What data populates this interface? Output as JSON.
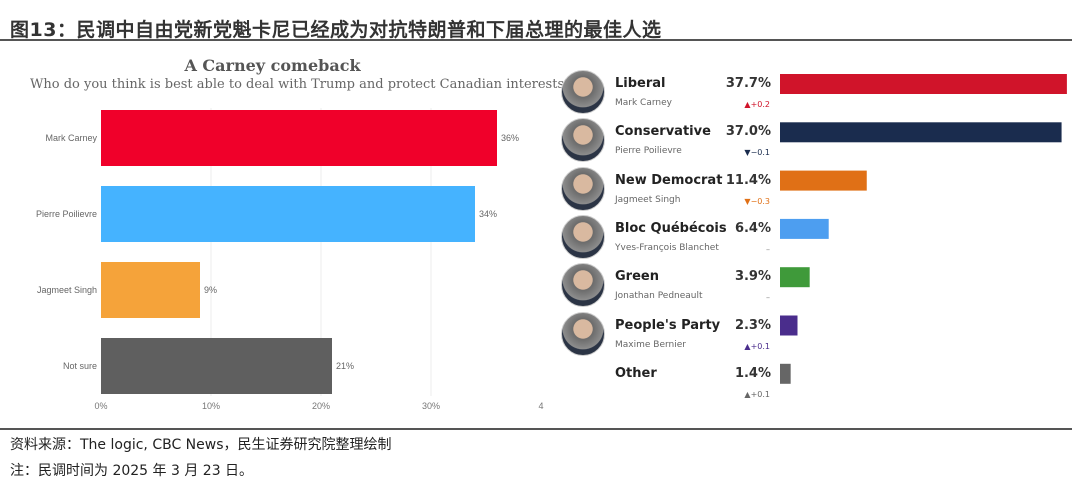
{
  "figure_title": "图13：民调中自由党新党魁卡尼已经成为对抗特朗普和下届总理的最佳人选",
  "source": "资料来源：The logic, CBC News，民生证券研究院整理绘制",
  "note": "注：民调时间为 2025 年 3 月 23 日。",
  "chart_data": [
    {
      "type": "bar",
      "orientation": "horizontal",
      "title": "A Carney comeback",
      "subtitle": "Who do you think is best able to deal with Trump and protect Canadian interests?",
      "categories": [
        "Mark Carney",
        "Pierre Poilievre",
        "Jagmeet Singh",
        "Not sure"
      ],
      "values": [
        36,
        34,
        9,
        21
      ],
      "value_labels": [
        "36%",
        "34%",
        "9%",
        "21%"
      ],
      "colors": [
        "#f0002a",
        "#45b3ff",
        "#f5a33a",
        "#5f5f5f"
      ],
      "xticks": [
        "0%",
        "10%",
        "20%",
        "30%",
        "4"
      ],
      "xtick_values": [
        0,
        10,
        20,
        30,
        40
      ],
      "xlim": [
        0,
        40
      ],
      "grid": true
    },
    {
      "type": "bar",
      "orientation": "horizontal",
      "categories": [
        "Liberal",
        "Conservative",
        "New Democrat",
        "Bloc Québécois",
        "Green",
        "People's Party",
        "Other"
      ],
      "leaders": [
        "Mark Carney",
        "Pierre Poilievre",
        "Jagmeet Singh",
        "Yves-François Blanchet",
        "Jonathan Pedneault",
        "Maxime Bernier",
        ""
      ],
      "values": [
        37.7,
        37.0,
        11.4,
        6.4,
        3.9,
        2.3,
        1.4
      ],
      "value_labels": [
        "37.7%",
        "37.0%",
        "11.4%",
        "6.4%",
        "3.9%",
        "2.3%",
        "1.4%"
      ],
      "changes": [
        "▲+0.2",
        "▼−0.1",
        "▼−0.3",
        "–",
        "–",
        "▲+0.1",
        "▲+0.1"
      ],
      "change_colors": [
        "#d0142a",
        "#1a2c4e",
        "#e07016",
        "#888888",
        "#888888",
        "#4a2d8c",
        "#666666"
      ],
      "colors": [
        "#d0142a",
        "#1a2c4e",
        "#e07016",
        "#4d9ef0",
        "#3f9a3a",
        "#4a2d8c",
        "#666666"
      ],
      "has_photo": [
        true,
        true,
        true,
        true,
        true,
        true,
        false
      ]
    }
  ]
}
